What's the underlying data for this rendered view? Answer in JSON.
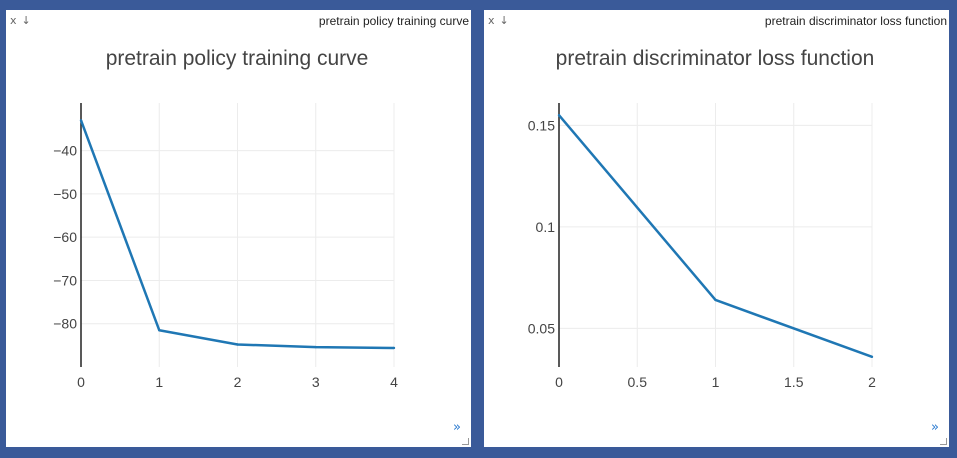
{
  "panes": [
    {
      "icons": [
        "close-icon",
        "download-icon"
      ],
      "close_glyph": "x",
      "download_glyph": "↓",
      "window_title": "pretrain policy training curve",
      "expand_glyph": "»"
    },
    {
      "icons": [
        "close-icon",
        "download-icon"
      ],
      "close_glyph": "x",
      "download_glyph": "↓",
      "window_title": "pretrain discriminator loss function",
      "expand_glyph": "»"
    }
  ],
  "chart_data": [
    {
      "type": "line",
      "title": "pretrain policy training curve",
      "x": [
        0,
        1,
        2,
        3,
        4
      ],
      "series": [
        {
          "values": [
            -33,
            -81.5,
            -84.8,
            -85.4,
            -85.6
          ]
        }
      ],
      "xlim": [
        0,
        4
      ],
      "ylim": [
        -90,
        -29
      ],
      "xticks": [
        0,
        1,
        2,
        3,
        4
      ],
      "xtick_labels": [
        "0",
        "1",
        "2",
        "3",
        "4"
      ],
      "yticks": [
        -40,
        -50,
        -60,
        -70,
        -80
      ],
      "ytick_labels": [
        "−40",
        "−50",
        "−60",
        "−70",
        "−80"
      ],
      "grid": true,
      "color": "#1f77b4"
    },
    {
      "type": "line",
      "title": "pretrain discriminator loss function",
      "x": [
        0,
        1,
        2
      ],
      "series": [
        {
          "values": [
            0.155,
            0.064,
            0.036
          ]
        }
      ],
      "xlim": [
        0,
        2
      ],
      "ylim": [
        0.031,
        0.161
      ],
      "xticks": [
        0,
        0.5,
        1,
        1.5,
        2
      ],
      "xtick_labels": [
        "0",
        "0.5",
        "1",
        "1.5",
        "2"
      ],
      "yticks": [
        0.15,
        0.1,
        0.05
      ],
      "ytick_labels": [
        "0.15",
        "0.1",
        "0.05"
      ],
      "grid": true,
      "color": "#1f77b4"
    }
  ]
}
